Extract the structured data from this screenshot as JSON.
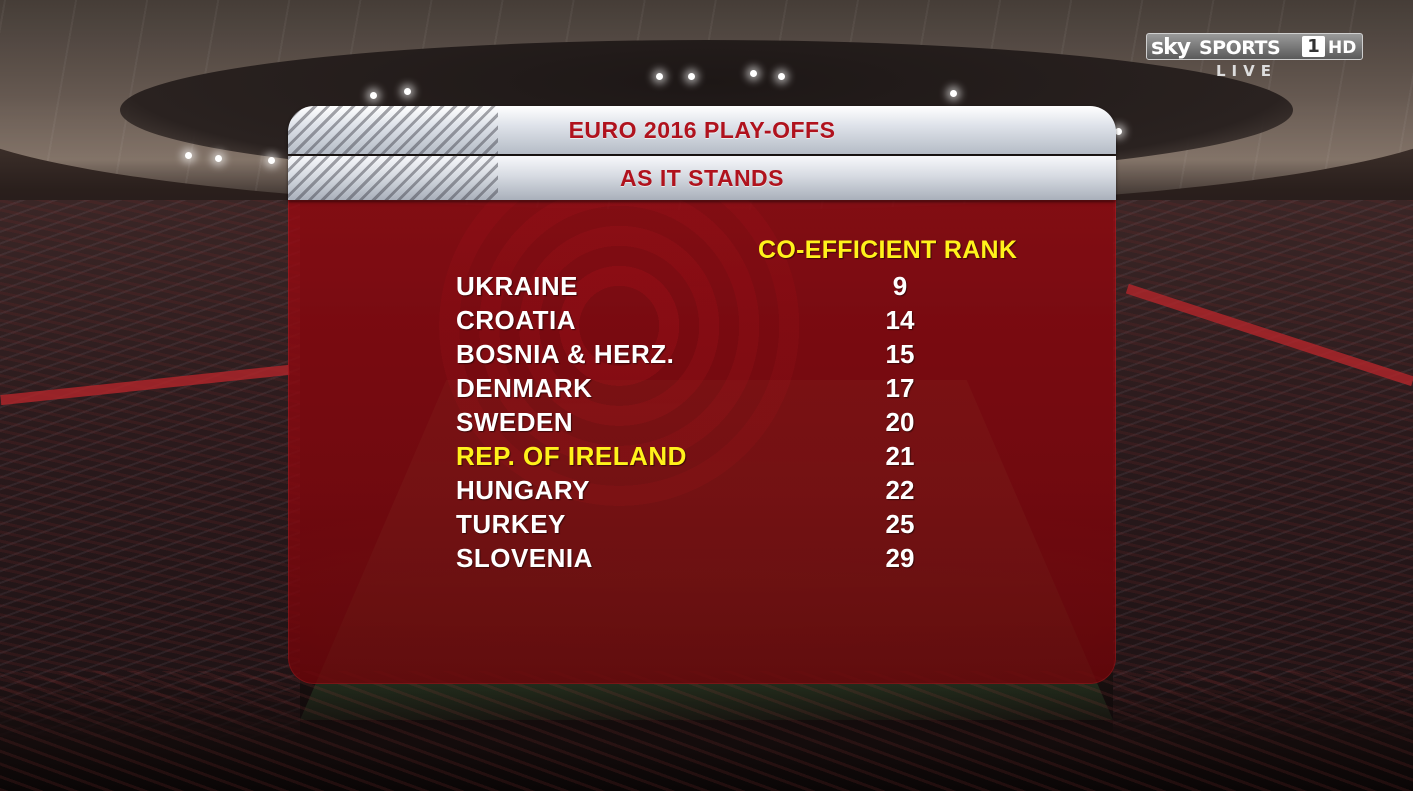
{
  "broadcaster": {
    "sky": "sky",
    "sports": "SPORTS",
    "channel": "1",
    "hd": "HD",
    "status": "LIVE"
  },
  "graphic": {
    "title": "EURO 2016 PLAY-OFFS",
    "subtitle": "AS IT STANDS",
    "column_header": "CO-EFFICIENT RANK",
    "highlight_color": "#fff21b",
    "title_color": "#b0121d",
    "rows": [
      {
        "team": "UKRAINE",
        "rank": "9"
      },
      {
        "team": "CROATIA",
        "rank": "14"
      },
      {
        "team": "BOSNIA & HERZ.",
        "rank": "15"
      },
      {
        "team": "DENMARK",
        "rank": "17"
      },
      {
        "team": "SWEDEN",
        "rank": "20"
      },
      {
        "team": "REP. OF IRELAND",
        "rank": "21",
        "highlighted": true
      },
      {
        "team": "HUNGARY",
        "rank": "22"
      },
      {
        "team": "TURKEY",
        "rank": "25"
      },
      {
        "team": "SLOVENIA",
        "rank": "29"
      }
    ]
  }
}
